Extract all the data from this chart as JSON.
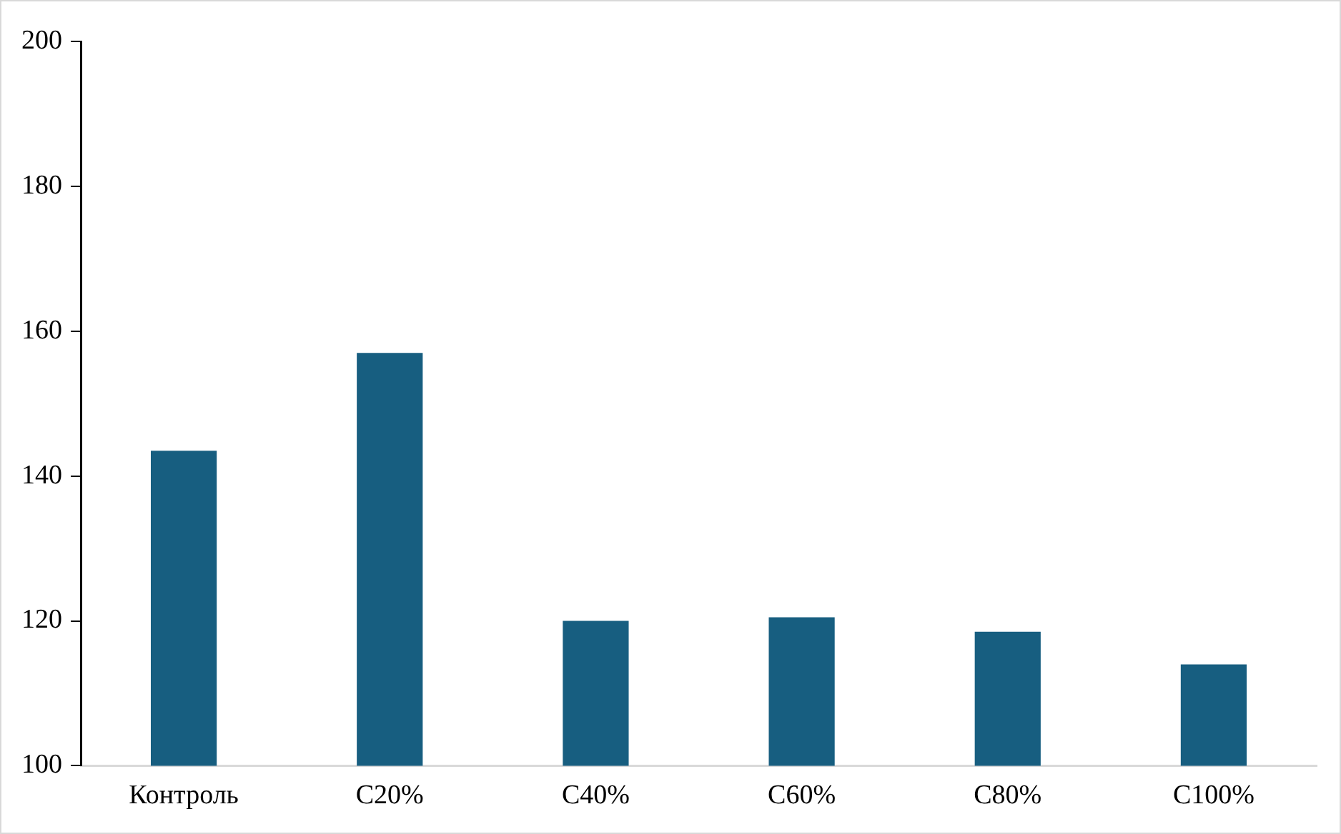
{
  "chart_data": {
    "type": "bar",
    "categories": [
      "Контроль",
      "C20%",
      "C40%",
      "C60%",
      "C80%",
      "C100%"
    ],
    "values": [
      143.5,
      157,
      120,
      120.5,
      118.5,
      114
    ],
    "color": "#175e80",
    "ylim": [
      100,
      200
    ],
    "yticks": [
      100,
      120,
      140,
      160,
      180,
      200
    ],
    "grid": false,
    "legend": false
  }
}
